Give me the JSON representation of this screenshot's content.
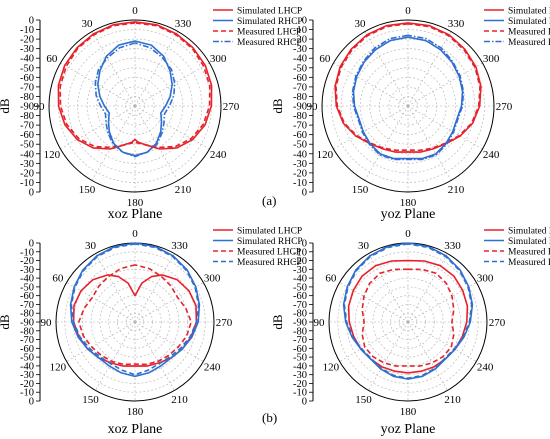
{
  "panel_tags": [
    "(a)",
    "(b)"
  ],
  "colors": {
    "lhcp": "#e8202a",
    "rhcp": "#2f6fcf"
  },
  "chart_data": [
    {
      "type": "polar",
      "plane": "xoz Plane",
      "ylabel": "dB",
      "rlim": [
        -90,
        0
      ],
      "r_ticks": [
        0,
        -10,
        -20,
        -30,
        -40,
        -50,
        -60,
        -70,
        -80,
        -90,
        -80,
        -70,
        -60,
        -50,
        -40,
        -30,
        -20,
        -10,
        0
      ],
      "angle_labels": [
        "0",
        "30",
        "60",
        "90",
        "120",
        "150",
        "180",
        "210",
        "240",
        "270",
        "300",
        "330"
      ],
      "legend": [
        "Simulated LHCP",
        "Simulated RHCP",
        "Measured LHCP",
        "Measured RHCP"
      ],
      "series": [
        {
          "name": "Simulated LHCP",
          "style": "solid",
          "color": "lhcp",
          "angles": [
            0,
            15,
            30,
            45,
            60,
            75,
            90,
            105,
            120,
            135,
            150,
            165,
            175,
            180,
            185,
            195,
            210,
            225,
            240,
            255,
            270,
            285,
            300,
            315,
            330,
            345,
            360
          ],
          "values": [
            -2,
            -2,
            -3,
            -4,
            -5,
            -7,
            -10,
            -14,
            -20,
            -28,
            -38,
            -48,
            -52,
            -55,
            -52,
            -48,
            -38,
            -28,
            -20,
            -14,
            -10,
            -7,
            -5,
            -4,
            -3,
            -2,
            -2
          ]
        },
        {
          "name": "Simulated RHCP",
          "style": "solid",
          "color": "rhcp",
          "angles": [
            0,
            15,
            30,
            45,
            60,
            75,
            90,
            105,
            120,
            135,
            150,
            165,
            180,
            195,
            210,
            225,
            240,
            255,
            270,
            285,
            300,
            315,
            330,
            345,
            360
          ],
          "values": [
            -22,
            -24,
            -30,
            -38,
            -45,
            -52,
            -58,
            -62,
            -58,
            -52,
            -45,
            -40,
            -38,
            -40,
            -45,
            -52,
            -58,
            -62,
            -58,
            -52,
            -45,
            -38,
            -30,
            -24,
            -22
          ]
        },
        {
          "name": "Measured LHCP",
          "style": "dashed",
          "color": "lhcp",
          "angles": [
            0,
            15,
            30,
            45,
            60,
            75,
            90,
            105,
            120,
            135,
            150,
            165,
            180,
            195,
            210,
            225,
            240,
            255,
            270,
            285,
            300,
            315,
            330,
            345,
            360
          ],
          "values": [
            -3,
            -3,
            -4,
            -5,
            -7,
            -9,
            -12,
            -16,
            -22,
            -30,
            -40,
            -48,
            -52,
            -48,
            -40,
            -30,
            -22,
            -16,
            -12,
            -9,
            -7,
            -5,
            -4,
            -3,
            -3
          ]
        },
        {
          "name": "Measured RHCP",
          "style": "dashdot",
          "color": "rhcp",
          "angles": [
            0,
            15,
            30,
            45,
            60,
            75,
            90,
            105,
            120,
            135,
            150,
            165,
            180,
            195,
            210,
            225,
            240,
            255,
            270,
            285,
            300,
            315,
            330,
            345,
            360
          ],
          "values": [
            -24,
            -27,
            -32,
            -36,
            -42,
            -48,
            -54,
            -58,
            -55,
            -50,
            -44,
            -40,
            -37,
            -40,
            -44,
            -50,
            -55,
            -58,
            -54,
            -48,
            -42,
            -36,
            -32,
            -27,
            -24
          ]
        }
      ]
    },
    {
      "type": "polar",
      "plane": "yoz Plane",
      "ylabel": "dB",
      "rlim": [
        -90,
        0
      ],
      "r_ticks": [
        0,
        -10,
        -20,
        -30,
        -40,
        -50,
        -60,
        -70,
        -80,
        -90,
        -80,
        -70,
        -60,
        -50,
        -40,
        -30,
        -20,
        -10,
        0
      ],
      "angle_labels": [
        "0",
        "30",
        "60",
        "90",
        "120",
        "150",
        "180",
        "210",
        "240",
        "270",
        "300",
        "330"
      ],
      "legend": [
        "Simulated LHCP",
        "Simulated RHCP",
        "Measured LHCP",
        "Measured RHCP"
      ],
      "series": [
        {
          "name": "Simulated LHCP",
          "style": "solid",
          "color": "lhcp",
          "angles": [
            0,
            15,
            30,
            45,
            60,
            75,
            90,
            105,
            120,
            135,
            150,
            165,
            180,
            195,
            210,
            225,
            240,
            255,
            270,
            285,
            300,
            315,
            330,
            345,
            360
          ],
          "values": [
            -3,
            -3,
            -4,
            -6,
            -8,
            -11,
            -15,
            -20,
            -27,
            -34,
            -38,
            -40,
            -42,
            -40,
            -38,
            -34,
            -27,
            -20,
            -15,
            -11,
            -8,
            -6,
            -4,
            -3,
            -3
          ]
        },
        {
          "name": "Simulated RHCP",
          "style": "solid",
          "color": "rhcp",
          "angles": [
            0,
            15,
            30,
            45,
            60,
            75,
            90,
            105,
            120,
            135,
            150,
            165,
            180,
            195,
            210,
            225,
            240,
            255,
            270,
            285,
            300,
            315,
            330,
            345,
            360
          ],
          "values": [
            -18,
            -19,
            -22,
            -25,
            -28,
            -31,
            -34,
            -37,
            -36,
            -34,
            -32,
            -33,
            -35,
            -33,
            -32,
            -34,
            -36,
            -37,
            -34,
            -31,
            -28,
            -25,
            -22,
            -19,
            -18
          ]
        },
        {
          "name": "Measured LHCP",
          "style": "dashed",
          "color": "lhcp",
          "angles": [
            0,
            15,
            30,
            45,
            60,
            75,
            90,
            105,
            120,
            135,
            150,
            165,
            180,
            195,
            210,
            225,
            240,
            255,
            270,
            285,
            300,
            315,
            330,
            345,
            360
          ],
          "values": [
            -4,
            -4,
            -5,
            -7,
            -9,
            -12,
            -16,
            -21,
            -28,
            -35,
            -39,
            -42,
            -44,
            -42,
            -39,
            -35,
            -28,
            -21,
            -16,
            -12,
            -9,
            -7,
            -5,
            -4,
            -4
          ]
        },
        {
          "name": "Measured RHCP",
          "style": "dashdot",
          "color": "rhcp",
          "angles": [
            0,
            15,
            30,
            45,
            60,
            75,
            90,
            105,
            120,
            135,
            150,
            165,
            180,
            195,
            210,
            225,
            240,
            255,
            270,
            285,
            300,
            315,
            330,
            345,
            360
          ],
          "values": [
            -16,
            -17,
            -20,
            -24,
            -27,
            -30,
            -33,
            -36,
            -35,
            -33,
            -31,
            -32,
            -34,
            -32,
            -31,
            -33,
            -35,
            -36,
            -33,
            -30,
            -27,
            -24,
            -20,
            -17,
            -16
          ]
        }
      ]
    },
    {
      "type": "polar",
      "plane": "xoz Plane",
      "ylabel": "dB",
      "rlim": [
        -90,
        0
      ],
      "r_ticks": [
        0,
        -10,
        -20,
        -30,
        -40,
        -50,
        -60,
        -70,
        -80,
        -90,
        -80,
        -70,
        -60,
        -50,
        -40,
        -30,
        -20,
        -10,
        0
      ],
      "angle_labels": [
        "0",
        "30",
        "60",
        "90",
        "120",
        "150",
        "180",
        "210",
        "240",
        "270",
        "300",
        "330"
      ],
      "legend": [
        "Simulated LHCP",
        "Simulated RHCP",
        "Measured LHCP",
        "Measured RHCP"
      ],
      "series": [
        {
          "name": "Simulated LHCP",
          "style": "solid",
          "color": "lhcp",
          "angles": [
            0,
            10,
            20,
            30,
            45,
            60,
            75,
            90,
            105,
            120,
            135,
            150,
            165,
            180,
            195,
            210,
            225,
            240,
            255,
            270,
            285,
            300,
            315,
            330,
            340,
            350,
            360
          ],
          "values": [
            -60,
            -45,
            -35,
            -28,
            -22,
            -19,
            -18,
            -20,
            -24,
            -28,
            -32,
            -36,
            -38,
            -40,
            -38,
            -36,
            -32,
            -28,
            -24,
            -20,
            -18,
            -19,
            -22,
            -28,
            -35,
            -45,
            -60
          ]
        },
        {
          "name": "Simulated RHCP",
          "style": "solid",
          "color": "rhcp",
          "angles": [
            0,
            15,
            30,
            45,
            60,
            75,
            90,
            105,
            120,
            135,
            150,
            165,
            180,
            195,
            210,
            225,
            240,
            255,
            270,
            285,
            300,
            315,
            330,
            345,
            360
          ],
          "values": [
            0,
            -1,
            -3,
            -6,
            -10,
            -14,
            -18,
            -23,
            -28,
            -32,
            -32,
            -30,
            -28,
            -30,
            -32,
            -32,
            -28,
            -23,
            -18,
            -14,
            -10,
            -6,
            -3,
            -1,
            0
          ]
        },
        {
          "name": "Measured LHCP",
          "style": "dashed",
          "color": "lhcp",
          "angles": [
            0,
            15,
            30,
            45,
            60,
            75,
            90,
            105,
            120,
            135,
            150,
            165,
            180,
            195,
            210,
            225,
            240,
            255,
            270,
            285,
            300,
            315,
            330,
            345,
            360
          ],
          "values": [
            -25,
            -27,
            -30,
            -32,
            -34,
            -30,
            -26,
            -29,
            -33,
            -36,
            -38,
            -40,
            -42,
            -40,
            -38,
            -36,
            -33,
            -29,
            -26,
            -30,
            -34,
            -32,
            -30,
            -27,
            -25
          ]
        },
        {
          "name": "Measured RHCP",
          "style": "dashed",
          "color": "rhcp",
          "angles": [
            0,
            15,
            30,
            45,
            60,
            75,
            90,
            105,
            120,
            135,
            150,
            165,
            180,
            195,
            210,
            225,
            240,
            255,
            270,
            285,
            300,
            315,
            330,
            345,
            360
          ],
          "values": [
            -1,
            -2,
            -4,
            -7,
            -11,
            -15,
            -20,
            -25,
            -30,
            -34,
            -35,
            -33,
            -30,
            -33,
            -35,
            -34,
            -30,
            -25,
            -20,
            -15,
            -11,
            -7,
            -4,
            -2,
            -1
          ]
        }
      ]
    },
    {
      "type": "polar",
      "plane": "yoz Plane",
      "ylabel": "dB",
      "rlim": [
        -90,
        0
      ],
      "r_ticks": [
        0,
        -10,
        -20,
        -30,
        -40,
        -50,
        -60,
        -70,
        -80,
        -90,
        -80,
        -70,
        -60,
        -50,
        -40,
        -30,
        -20,
        -10,
        0
      ],
      "angle_labels": [
        "0",
        "30",
        "60",
        "90",
        "120",
        "150",
        "180",
        "210",
        "240",
        "270",
        "300",
        "330"
      ],
      "legend": [
        "Simulated LHCP",
        "Simulated RHCP",
        "Measured LHCP",
        "Measured RHCP"
      ],
      "series": [
        {
          "name": "Simulated LHCP",
          "style": "solid",
          "color": "lhcp",
          "angles": [
            0,
            15,
            30,
            45,
            60,
            75,
            90,
            105,
            120,
            135,
            150,
            165,
            180,
            195,
            210,
            225,
            240,
            255,
            270,
            285,
            300,
            315,
            330,
            345,
            360
          ],
          "values": [
            -20,
            -18,
            -16,
            -16,
            -18,
            -20,
            -23,
            -26,
            -28,
            -30,
            -31,
            -32,
            -32,
            -32,
            -31,
            -30,
            -28,
            -26,
            -23,
            -20,
            -18,
            -16,
            -16,
            -18,
            -20
          ]
        },
        {
          "name": "Simulated RHCP",
          "style": "solid",
          "color": "rhcp",
          "angles": [
            0,
            15,
            30,
            45,
            60,
            75,
            90,
            105,
            120,
            135,
            150,
            165,
            180,
            195,
            210,
            225,
            240,
            255,
            270,
            285,
            300,
            315,
            330,
            345,
            360
          ],
          "values": [
            0,
            -1,
            -3,
            -6,
            -10,
            -14,
            -19,
            -24,
            -28,
            -30,
            -28,
            -26,
            -25,
            -26,
            -28,
            -30,
            -28,
            -24,
            -19,
            -14,
            -10,
            -6,
            -3,
            -1,
            0
          ]
        },
        {
          "name": "Measured LHCP",
          "style": "dashed",
          "color": "lhcp",
          "angles": [
            0,
            15,
            30,
            45,
            60,
            75,
            90,
            105,
            120,
            135,
            150,
            165,
            180,
            195,
            210,
            225,
            240,
            255,
            270,
            285,
            300,
            315,
            330,
            345,
            360
          ],
          "values": [
            -30,
            -28,
            -26,
            -28,
            -32,
            -36,
            -40,
            -36,
            -33,
            -34,
            -36,
            -38,
            -40,
            -38,
            -36,
            -34,
            -33,
            -36,
            -40,
            -36,
            -32,
            -28,
            -26,
            -28,
            -30
          ]
        },
        {
          "name": "Measured RHCP",
          "style": "dashed",
          "color": "rhcp",
          "angles": [
            0,
            15,
            30,
            45,
            60,
            75,
            90,
            105,
            120,
            135,
            150,
            165,
            180,
            195,
            210,
            225,
            240,
            255,
            270,
            285,
            300,
            315,
            330,
            345,
            360
          ],
          "values": [
            -1,
            -2,
            -4,
            -7,
            -11,
            -15,
            -20,
            -25,
            -29,
            -31,
            -29,
            -27,
            -26,
            -27,
            -29,
            -31,
            -29,
            -25,
            -20,
            -15,
            -11,
            -7,
            -4,
            -2,
            -1
          ]
        }
      ]
    }
  ]
}
